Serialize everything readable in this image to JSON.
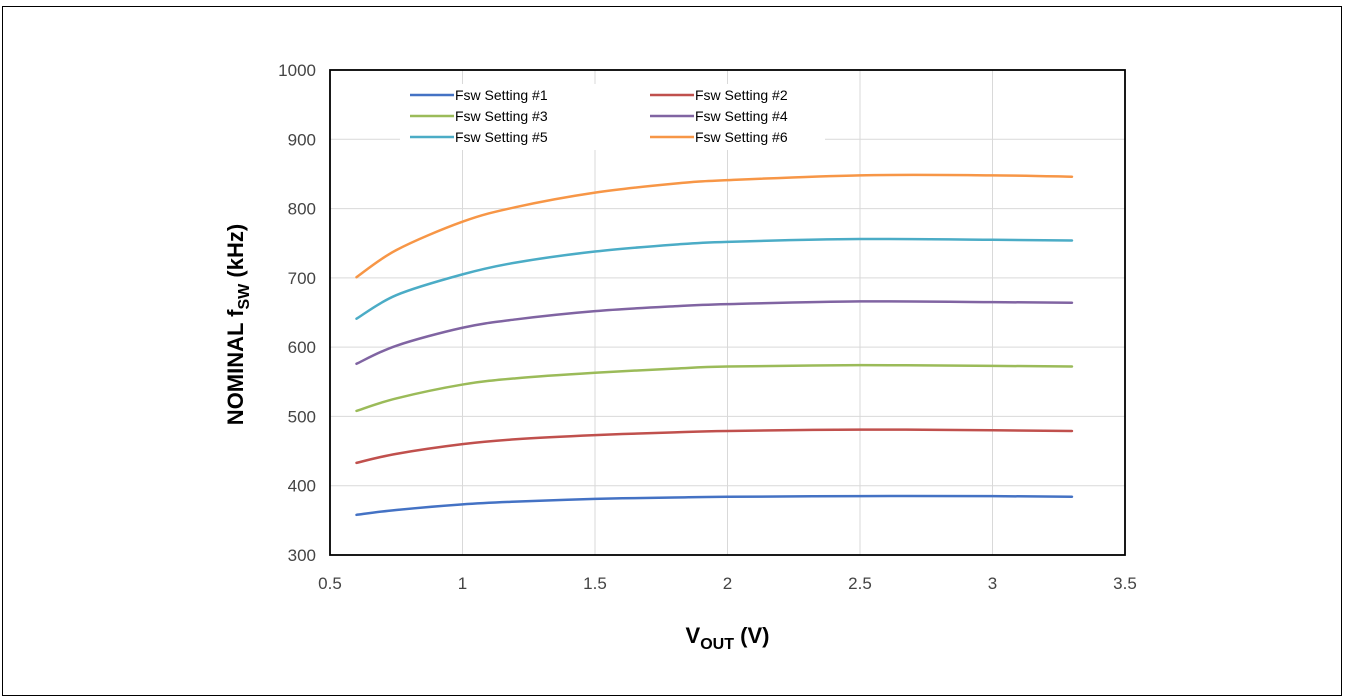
{
  "chart_data": {
    "type": "line",
    "xlabel": {
      "main": "V",
      "sub": "OUT",
      "rest": " (V)"
    },
    "ylabel": {
      "main": "NOMINAL f",
      "sub": "SW",
      "rest": " (kHz)"
    },
    "xlim": [
      0.5,
      3.5
    ],
    "ylim": [
      300,
      1000
    ],
    "x_ticks": [
      "0.5",
      "1",
      "1.5",
      "2",
      "2.5",
      "3",
      "3.5"
    ],
    "y_ticks": [
      "300",
      "400",
      "500",
      "600",
      "700",
      "800",
      "900",
      "1000"
    ],
    "grid": "on",
    "legend_position": "top-left, inside plot",
    "x": [
      0.6,
      0.75,
      1.0,
      1.2,
      1.5,
      1.8,
      2.0,
      2.5,
      3.0,
      3.3
    ],
    "series": [
      {
        "name": "Fsw Setting #1",
        "color": "#4472c4",
        "values": [
          358,
          365,
          373,
          377,
          381,
          383,
          384,
          385,
          385,
          384
        ]
      },
      {
        "name": "Fsw Setting #2",
        "color": "#c0504d",
        "values": [
          433,
          446,
          460,
          467,
          473,
          477,
          479,
          481,
          480,
          479
        ]
      },
      {
        "name": "Fsw Setting #3",
        "color": "#9bbb59",
        "values": [
          508,
          526,
          546,
          555,
          563,
          569,
          572,
          574,
          573,
          572
        ]
      },
      {
        "name": "Fsw Setting #4",
        "color": "#8064a2",
        "values": [
          576,
          602,
          628,
          640,
          652,
          659,
          662,
          666,
          665,
          664
        ]
      },
      {
        "name": "Fsw Setting #5",
        "color": "#4bacc6",
        "values": [
          641,
          675,
          705,
          722,
          738,
          748,
          752,
          756,
          755,
          754
        ]
      },
      {
        "name": "Fsw Setting #6",
        "color": "#f79646",
        "values": [
          701,
          740,
          781,
          802,
          823,
          836,
          841,
          848,
          848,
          846
        ]
      }
    ]
  }
}
